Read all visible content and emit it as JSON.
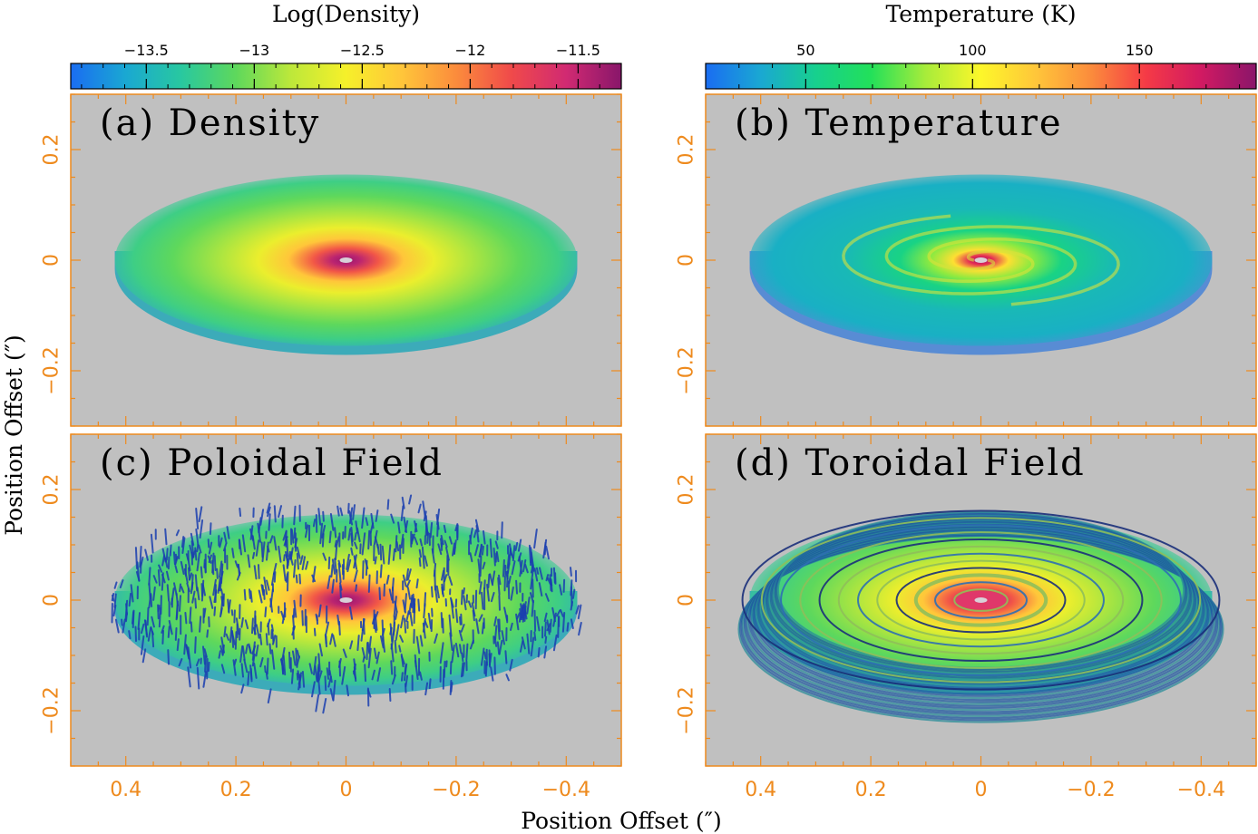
{
  "chart_data": [
    {
      "type": "heatmap",
      "panel_id": "a",
      "title": "(a) Density",
      "quantity": "Log(Density)",
      "colorbar": "cb_density",
      "row": 0,
      "col": 0,
      "xlim": [
        0.5,
        -0.5
      ],
      "ylim": [
        -0.3,
        0.3
      ],
      "overlay": "none",
      "disk_model": "density"
    },
    {
      "type": "heatmap",
      "panel_id": "b",
      "title": "(b) Temperature",
      "quantity": "Temperature (K)",
      "colorbar": "cb_temperature",
      "row": 0,
      "col": 1,
      "xlim": [
        0.5,
        -0.5
      ],
      "ylim": [
        -0.3,
        0.3
      ],
      "overlay": "spiral",
      "disk_model": "temperature"
    },
    {
      "type": "heatmap",
      "panel_id": "c",
      "title": "(c) Poloidal Field",
      "quantity": "Log(Density)",
      "colorbar": "cb_density",
      "row": 1,
      "col": 0,
      "xlim": [
        0.5,
        -0.5
      ],
      "ylim": [
        -0.3,
        0.3
      ],
      "overlay": "poloidal-vectors",
      "disk_model": "density"
    },
    {
      "type": "heatmap",
      "panel_id": "d",
      "title": "(d) Toroidal Field",
      "quantity": "Log(Density)",
      "colorbar": "cb_density",
      "row": 1,
      "col": 1,
      "xlim": [
        0.5,
        -0.5
      ],
      "ylim": [
        -0.3,
        0.3
      ],
      "overlay": "toroidal-rings",
      "disk_model": "density"
    }
  ],
  "colorbars": {
    "cb_density": {
      "title": "Log(Density)",
      "range": [
        -13.85,
        -11.3
      ],
      "ticks": [
        -13.5,
        -13,
        -12.5,
        -12,
        -11.5
      ],
      "tick_labels": [
        "−13.5",
        "−13",
        "−12.5",
        "−12",
        "−11.5"
      ],
      "minor_step": 0.1,
      "colormap": [
        "#1a6df2",
        "#1aa8d2",
        "#28c8a0",
        "#5ed85c",
        "#bde83a",
        "#f6f02a",
        "#ffc63a",
        "#fb8c3c",
        "#f04a4a",
        "#d12a72",
        "#88166a"
      ]
    },
    "cb_temperature": {
      "title": "Temperature (K)",
      "range": [
        20,
        185
      ],
      "ticks": [
        50,
        100,
        150
      ],
      "tick_labels": [
        "50",
        "100",
        "150"
      ],
      "minor_step": 10,
      "colormap": [
        "#1a6df2",
        "#1aa8d2",
        "#17d08e",
        "#22e05a",
        "#a8ec3a",
        "#fdf72a",
        "#ffc63a",
        "#fb8c3c",
        "#f53a46",
        "#d11a62",
        "#8a156a"
      ]
    }
  },
  "axes": {
    "x_ticks": [
      0.4,
      0.2,
      0,
      -0.2,
      -0.4
    ],
    "x_tick_labels": [
      "0.4",
      "0.2",
      "0",
      "−0.2",
      "−0.4"
    ],
    "y_ticks": [
      0.2,
      0,
      -0.2
    ],
    "y_tick_labels": [
      "0.2",
      "0",
      "−0.2"
    ],
    "xlabel": "Position Offset (″)",
    "ylabel": "Position Offset (″)"
  },
  "colors": {
    "axis_color": "#ee8a1d",
    "panel_background": "#c0c0c0",
    "vector_color": "#1b3fb0",
    "ring_color": "#1b3a8a"
  }
}
